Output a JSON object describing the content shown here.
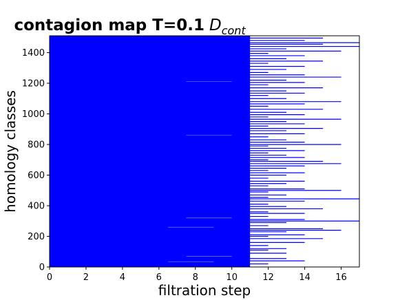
{
  "chart_data": {
    "type": "barcode",
    "title": "contagion map T=0.1",
    "title_math_main": "D",
    "title_math_sub": "cont",
    "xlabel": "filtration step",
    "ylabel": "homology classes",
    "xlim": [
      0,
      17
    ],
    "ylim": [
      0,
      1510
    ],
    "xticks": [
      0,
      2,
      4,
      6,
      8,
      10,
      12,
      14,
      16
    ],
    "yticks": [
      0,
      200,
      400,
      600,
      800,
      1000,
      1200,
      1400
    ],
    "bar_color": "#0000ff",
    "grid": false,
    "dense_baseline_death": 11,
    "bars": [
      {
        "y": 20,
        "death": 12
      },
      {
        "y": 40,
        "death": 14
      },
      {
        "y": 55,
        "death": 13
      },
      {
        "y": 90,
        "death": 13
      },
      {
        "y": 110,
        "death": 12
      },
      {
        "y": 120,
        "death": 13
      },
      {
        "y": 140,
        "death": 12
      },
      {
        "y": 160,
        "death": 14
      },
      {
        "y": 185,
        "death": 15
      },
      {
        "y": 200,
        "death": 12
      },
      {
        "y": 210,
        "death": 14
      },
      {
        "y": 230,
        "death": 13
      },
      {
        "y": 240,
        "death": 16
      },
      {
        "y": 250,
        "death": 15
      },
      {
        "y": 270,
        "death": 12
      },
      {
        "y": 290,
        "death": 13
      },
      {
        "y": 300,
        "death": 17
      },
      {
        "y": 310,
        "death": 14
      },
      {
        "y": 330,
        "death": 12
      },
      {
        "y": 350,
        "death": 14
      },
      {
        "y": 360,
        "death": 12
      },
      {
        "y": 380,
        "death": 15
      },
      {
        "y": 395,
        "death": 13
      },
      {
        "y": 410,
        "death": 12
      },
      {
        "y": 430,
        "death": 14
      },
      {
        "y": 445,
        "death": 17
      },
      {
        "y": 455,
        "death": 12
      },
      {
        "y": 470,
        "death": 13
      },
      {
        "y": 490,
        "death": 12
      },
      {
        "y": 500,
        "death": 16
      },
      {
        "y": 510,
        "death": 14
      },
      {
        "y": 530,
        "death": 12
      },
      {
        "y": 545,
        "death": 13
      },
      {
        "y": 560,
        "death": 14
      },
      {
        "y": 580,
        "death": 12
      },
      {
        "y": 600,
        "death": 13
      },
      {
        "y": 615,
        "death": 14
      },
      {
        "y": 630,
        "death": 12
      },
      {
        "y": 645,
        "death": 13
      },
      {
        "y": 660,
        "death": 14
      },
      {
        "y": 675,
        "death": 16
      },
      {
        "y": 690,
        "death": 15
      },
      {
        "y": 700,
        "death": 12
      },
      {
        "y": 715,
        "death": 14
      },
      {
        "y": 730,
        "death": 13
      },
      {
        "y": 745,
        "death": 12
      },
      {
        "y": 760,
        "death": 14
      },
      {
        "y": 775,
        "death": 13
      },
      {
        "y": 790,
        "death": 12
      },
      {
        "y": 800,
        "death": 16
      },
      {
        "y": 815,
        "death": 14
      },
      {
        "y": 830,
        "death": 13
      },
      {
        "y": 850,
        "death": 12
      },
      {
        "y": 870,
        "death": 14
      },
      {
        "y": 890,
        "death": 13
      },
      {
        "y": 905,
        "death": 15
      },
      {
        "y": 920,
        "death": 12
      },
      {
        "y": 935,
        "death": 14
      },
      {
        "y": 950,
        "death": 13
      },
      {
        "y": 965,
        "death": 16
      },
      {
        "y": 980,
        "death": 12
      },
      {
        "y": 995,
        "death": 14
      },
      {
        "y": 1010,
        "death": 13
      },
      {
        "y": 1030,
        "death": 15
      },
      {
        "y": 1050,
        "death": 12
      },
      {
        "y": 1065,
        "death": 14
      },
      {
        "y": 1080,
        "death": 16
      },
      {
        "y": 1100,
        "death": 13
      },
      {
        "y": 1120,
        "death": 12
      },
      {
        "y": 1135,
        "death": 14
      },
      {
        "y": 1150,
        "death": 13
      },
      {
        "y": 1170,
        "death": 15
      },
      {
        "y": 1190,
        "death": 12
      },
      {
        "y": 1205,
        "death": 14
      },
      {
        "y": 1220,
        "death": 13
      },
      {
        "y": 1240,
        "death": 16
      },
      {
        "y": 1255,
        "death": 14
      },
      {
        "y": 1270,
        "death": 12
      },
      {
        "y": 1290,
        "death": 13
      },
      {
        "y": 1310,
        "death": 14
      },
      {
        "y": 1330,
        "death": 12
      },
      {
        "y": 1345,
        "death": 15
      },
      {
        "y": 1360,
        "death": 13
      },
      {
        "y": 1380,
        "death": 14
      },
      {
        "y": 1395,
        "death": 12
      },
      {
        "y": 1410,
        "death": 16
      },
      {
        "y": 1425,
        "death": 13
      },
      {
        "y": 1440,
        "death": 17
      },
      {
        "y": 1455,
        "death": 15
      },
      {
        "y": 1465,
        "death": 17
      },
      {
        "y": 1480,
        "death": 14
      },
      {
        "y": 1495,
        "death": 15
      }
    ],
    "light_bars": [
      {
        "y": 35,
        "death": 9
      },
      {
        "y": 70,
        "death": 10
      },
      {
        "y": 260,
        "death": 9
      },
      {
        "y": 320,
        "death": 10
      },
      {
        "y": 510,
        "death": 8
      },
      {
        "y": 660,
        "death": 9
      },
      {
        "y": 860,
        "death": 10
      },
      {
        "y": 1210,
        "death": 10
      },
      {
        "y": 1380,
        "death": 9
      }
    ]
  }
}
